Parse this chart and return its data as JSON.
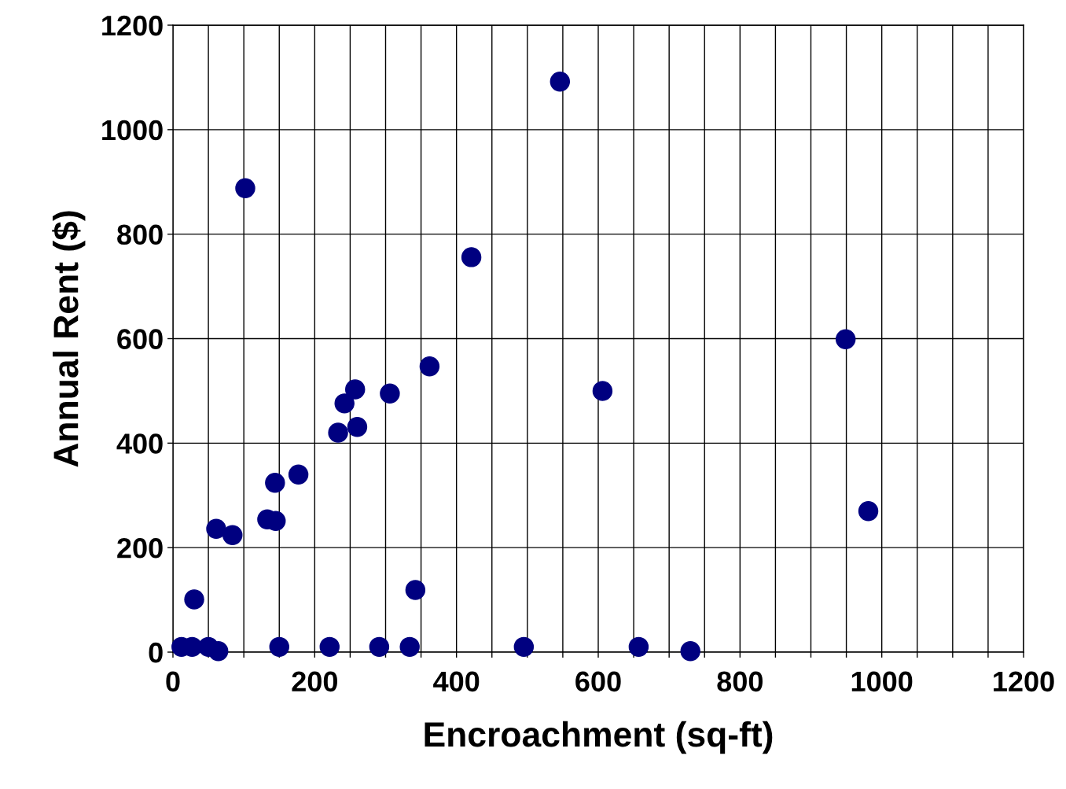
{
  "chart_data": {
    "type": "scatter",
    "xlabel": "Encroachment (sq-ft)",
    "ylabel": "Annual Rent ($)",
    "x": [
      12,
      27,
      30,
      50,
      64,
      61,
      84,
      102,
      133,
      145,
      144,
      150,
      177,
      221,
      233,
      242,
      257,
      260,
      291,
      306,
      334,
      342,
      362,
      421,
      495,
      546,
      606,
      657,
      730,
      949,
      981
    ],
    "series": [
      {
        "color": "#000080",
        "values": [
          10,
          10,
          101,
          10,
          2,
          236,
          224,
          888,
          254,
          251,
          324,
          10,
          340,
          10,
          420,
          476,
          503,
          431,
          10,
          495,
          10,
          119,
          547,
          756,
          10,
          1092,
          500,
          10,
          2,
          599,
          270
        ]
      }
    ],
    "xlim": [
      0,
      1200
    ],
    "ylim": [
      0,
      1200
    ],
    "xticks": [
      0,
      {
        "value": 50,
        "label": null
      },
      {
        "value": 100,
        "label": null
      },
      {
        "value": 150,
        "label": null
      },
      200,
      {
        "value": 250,
        "label": null
      },
      {
        "value": 300,
        "label": null
      },
      {
        "value": 350,
        "label": null
      },
      400,
      {
        "value": 450,
        "label": null
      },
      {
        "value": 500,
        "label": null
      },
      {
        "value": 550,
        "label": null
      },
      600,
      {
        "value": 650,
        "label": null
      },
      {
        "value": 700,
        "label": null
      },
      {
        "value": 750,
        "label": null
      },
      800,
      {
        "value": 850,
        "label": null
      },
      {
        "value": 900,
        "label": null
      },
      {
        "value": 950,
        "label": null
      },
      1000,
      {
        "value": 1050,
        "label": null
      },
      {
        "value": 1100,
        "label": null
      },
      {
        "value": 1150,
        "label": null
      },
      1200
    ],
    "yticks": [
      0,
      200,
      400,
      600,
      800,
      1000,
      1200
    ],
    "grid": true,
    "marker": "circle"
  }
}
